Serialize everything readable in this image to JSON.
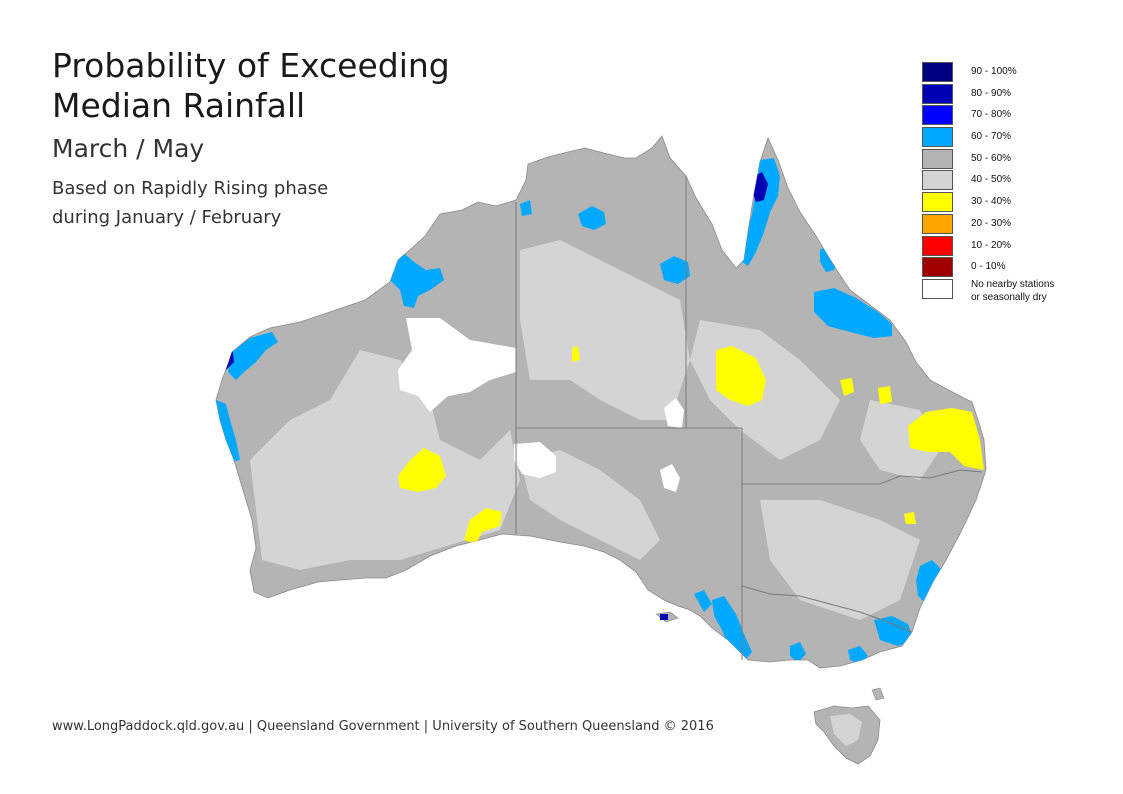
{
  "title_line1": "Probability of Exceeding",
  "title_line2": "Median Rainfall",
  "season": "March / May",
  "basis_line1": "Based on Rapidly Rising phase",
  "basis_line2": "during January / February",
  "footer": "www.LongPaddock.qld.gov.au | Queensland Government | University of Southern Queensland © 2016",
  "legend": [
    {
      "label": "90 - 100%",
      "color": "#000080"
    },
    {
      "label": "80 - 90%",
      "color": "#0000b4"
    },
    {
      "label": "70 - 80%",
      "color": "#0000ff"
    },
    {
      "label": "60 - 70%",
      "color": "#00a8ff"
    },
    {
      "label": "50 - 60%",
      "color": "#b4b4b4"
    },
    {
      "label": "40 - 50%",
      "color": "#d4d4d4"
    },
    {
      "label": "30 - 40%",
      "color": "#ffff00"
    },
    {
      "label": "20 - 30%",
      "color": "#ffa500"
    },
    {
      "label": "10 - 20%",
      "color": "#ff0000"
    },
    {
      "label": "0 - 10%",
      "color": "#a00000"
    }
  ],
  "legend_nodata_line1": "No nearby stations",
  "legend_nodata_line2": "or seasonally dry",
  "legend_nodata_color": "#ffffff"
}
